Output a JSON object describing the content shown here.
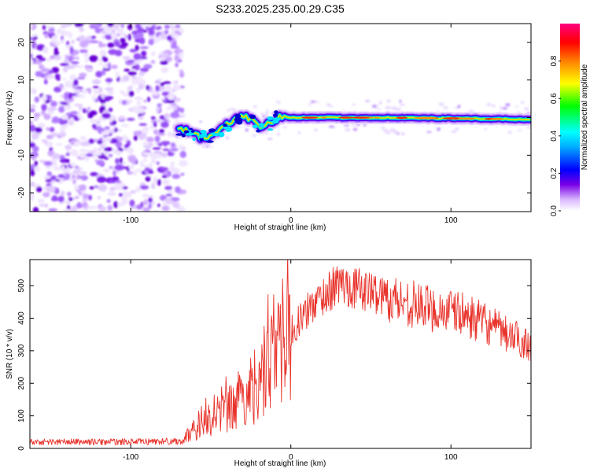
{
  "figure_title": "S233.2025.235.00.29.C35",
  "chart_data": [
    {
      "type": "heatmap",
      "name": "spectrogram",
      "xlabel": "Height of straight line (km)",
      "ylabel": "Frequency (Hz)",
      "xlim": [
        -163,
        150
      ],
      "ylim": [
        -25,
        25
      ],
      "xticks": [
        -100,
        0,
        100
      ],
      "yticks": [
        -20,
        -10,
        0,
        10,
        20
      ],
      "noise_region_x": [
        -163,
        -70
      ],
      "transition_x": [
        -70,
        -5
      ],
      "signal_trace": {
        "x": [
          -70,
          -62,
          -55,
          -48,
          -42,
          -36,
          -30,
          -24,
          -18,
          -12,
          -6,
          0,
          20,
          60,
          100,
          150
        ],
        "freq": [
          -2.5,
          -4.0,
          -5.5,
          -4.5,
          -2.5,
          -1.0,
          0.5,
          -0.5,
          -2.5,
          -1.0,
          0.5,
          0.0,
          0.0,
          0.0,
          -0.2,
          -0.5
        ]
      },
      "colorbar": {
        "label": "Normalized spectral amplitude",
        "range": [
          0,
          1
        ],
        "ticks": [
          "0.0",
          "0.2",
          "0.4",
          "0.6",
          "0.8"
        ],
        "colors": [
          "#ffffff",
          "#7a00e6",
          "#0000ff",
          "#00ffff",
          "#00ff00",
          "#ffff00",
          "#ff8000",
          "#ff0000",
          "#ff0080"
        ]
      }
    },
    {
      "type": "line",
      "name": "snr",
      "xlabel": "Height of straight line (km)",
      "ylabel": "SNR (10 * v/v)",
      "xlim": [
        -163,
        150
      ],
      "ylim": [
        0,
        580
      ],
      "xticks": [
        -100,
        0,
        100
      ],
      "yticks": [
        0,
        100,
        200,
        300,
        400,
        500
      ],
      "color": "#e8322a",
      "envelope": {
        "x": [
          -163,
          -100,
          -68,
          -62,
          -55,
          -45,
          -35,
          -25,
          -18,
          -10,
          0,
          15,
          30,
          45,
          60,
          75,
          90,
          105,
          120,
          135,
          150
        ],
        "y": [
          22,
          22,
          25,
          55,
          90,
          120,
          140,
          200,
          260,
          340,
          370,
          460,
          520,
          500,
          480,
          460,
          440,
          430,
          400,
          360,
          330
        ]
      }
    }
  ]
}
